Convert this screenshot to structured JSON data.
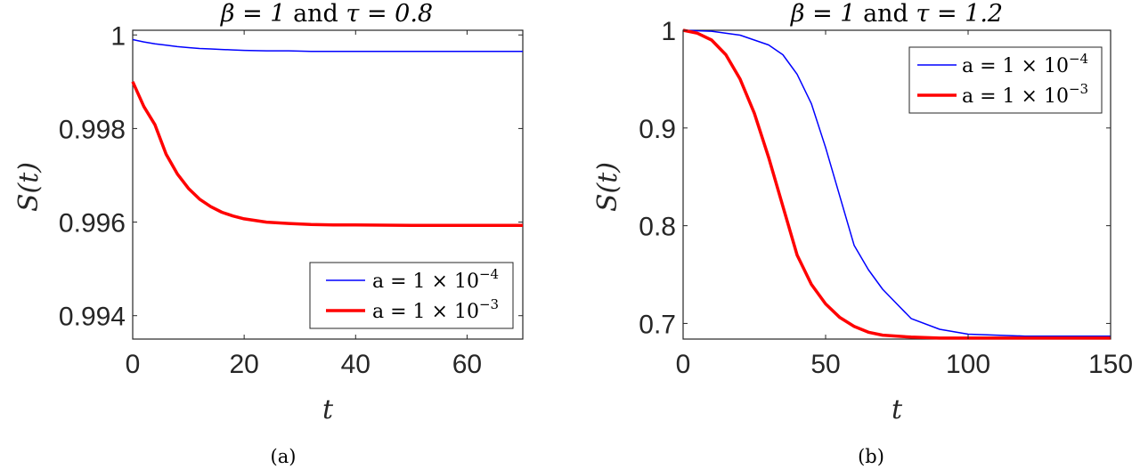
{
  "chart_data": [
    {
      "type": "line",
      "caption": "(a)",
      "title": {
        "pre": "β = 1",
        "mid": " and ",
        "post": "τ = 0.8"
      },
      "xlabel": "t",
      "ylabel": "S(t)",
      "xlim": [
        0,
        70
      ],
      "ylim": [
        0.9935,
        1.0001
      ],
      "xticks": [
        0,
        20,
        40,
        60
      ],
      "yticks": [
        0.994,
        0.996,
        0.998,
        1
      ],
      "ytick_labels": [
        "0.994",
        "0.996",
        "0.998",
        "1"
      ],
      "legend_position": "bottom-right",
      "series": [
        {
          "name": "a = 1 × 10^-4",
          "name_base": "a = 1 × 10",
          "name_exp": "−4",
          "color": "#0000ff",
          "width": "thin",
          "x": [
            0,
            2,
            4,
            6,
            8,
            10,
            12,
            14,
            16,
            18,
            20,
            24,
            28,
            32,
            36,
            40,
            50,
            60,
            70
          ],
          "y": [
            0.9999,
            0.99985,
            0.99981,
            0.99978,
            0.99975,
            0.99973,
            0.99971,
            0.9997,
            0.99969,
            0.99968,
            0.99967,
            0.99966,
            0.99966,
            0.99965,
            0.99965,
            0.99965,
            0.99965,
            0.99965,
            0.99965
          ]
        },
        {
          "name": "a = 1 × 10^-3",
          "name_base": "a = 1 × 10",
          "name_exp": "−3",
          "color": "#ff0000",
          "width": "thick",
          "x": [
            0,
            2,
            4,
            6,
            8,
            10,
            12,
            14,
            16,
            18,
            20,
            24,
            28,
            32,
            36,
            40,
            50,
            60,
            70
          ],
          "y": [
            0.999,
            0.99847,
            0.99808,
            0.99745,
            0.99703,
            0.99672,
            0.99649,
            0.99633,
            0.99621,
            0.99613,
            0.99607,
            0.996,
            0.99597,
            0.99595,
            0.99594,
            0.99594,
            0.99593,
            0.99593,
            0.99593
          ]
        }
      ]
    },
    {
      "type": "line",
      "caption": "(b)",
      "title": {
        "pre": "β = 1",
        "mid": " and ",
        "post": "τ = 1.2"
      },
      "xlabel": "t",
      "ylabel": "S(t)",
      "xlim": [
        0,
        150
      ],
      "ylim": [
        0.684,
        1.0
      ],
      "xticks": [
        0,
        50,
        100,
        150
      ],
      "yticks": [
        0.7,
        0.8,
        0.9,
        1
      ],
      "ytick_labels": [
        "0.7",
        "0.8",
        "0.9",
        "1"
      ],
      "legend_position": "top-right",
      "series": [
        {
          "name": "a = 1 × 10^-4",
          "name_base": "a = 1 × 10",
          "name_exp": "−4",
          "color": "#0000ff",
          "width": "thin",
          "x": [
            0,
            10,
            20,
            30,
            35,
            40,
            45,
            50,
            55,
            60,
            65,
            70,
            75,
            80,
            90,
            100,
            110,
            120,
            130,
            140,
            150
          ],
          "y": [
            1.0,
            0.999,
            0.995,
            0.985,
            0.975,
            0.955,
            0.925,
            0.88,
            0.83,
            0.78,
            0.755,
            0.735,
            0.72,
            0.705,
            0.694,
            0.689,
            0.688,
            0.687,
            0.687,
            0.687,
            0.687
          ]
        },
        {
          "name": "a = 1 × 10^-3",
          "name_base": "a = 1 × 10",
          "name_exp": "−3",
          "color": "#ff0000",
          "width": "thick",
          "x": [
            0,
            5,
            10,
            15,
            20,
            25,
            30,
            35,
            40,
            45,
            50,
            55,
            60,
            65,
            70,
            80,
            90,
            100,
            110,
            120,
            130,
            140,
            150
          ],
          "y": [
            1.0,
            0.997,
            0.99,
            0.975,
            0.95,
            0.915,
            0.87,
            0.82,
            0.77,
            0.74,
            0.72,
            0.706,
            0.697,
            0.691,
            0.688,
            0.686,
            0.685,
            0.685,
            0.685,
            0.685,
            0.685,
            0.685,
            0.685
          ]
        }
      ]
    }
  ]
}
